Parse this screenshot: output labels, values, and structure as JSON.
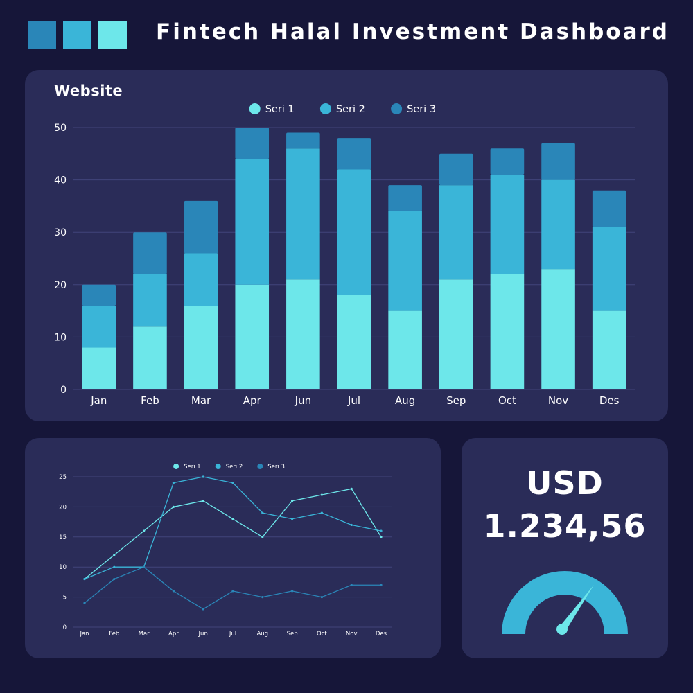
{
  "header": {
    "title": "Fintech Halal Investment Dashboard",
    "swatches": [
      "#2a86b8",
      "#3ab5d8",
      "#6de7ea"
    ]
  },
  "bar_panel": {
    "title": "Website"
  },
  "stat_panel": {
    "currency": "USD",
    "amount": "1.234,56",
    "gauge_color": "#3ab5d8",
    "needle_color": "#6de7ea"
  },
  "chart_data": [
    {
      "type": "bar",
      "stacked": true,
      "title": "Website",
      "categories": [
        "Jan",
        "Feb",
        "Mar",
        "Apr",
        "Jun",
        "Jul",
        "Aug",
        "Sep",
        "Oct",
        "Nov",
        "Des"
      ],
      "series": [
        {
          "name": "Seri 1",
          "color": "#6de7ea",
          "values": [
            8,
            12,
            16,
            20,
            21,
            18,
            15,
            21,
            22,
            23,
            15
          ]
        },
        {
          "name": "Seri 2",
          "color": "#3ab5d8",
          "values": [
            8,
            10,
            10,
            24,
            25,
            24,
            19,
            18,
            19,
            17,
            16
          ]
        },
        {
          "name": "Seri 3",
          "color": "#2a86b8",
          "values": [
            4,
            8,
            10,
            6,
            3,
            6,
            5,
            6,
            5,
            7,
            7
          ]
        }
      ],
      "ylim": [
        0,
        50
      ],
      "yticks": [
        0,
        10,
        20,
        30,
        40,
        50
      ],
      "grid": true,
      "legend": "top-center"
    },
    {
      "type": "line",
      "categories": [
        "Jan",
        "Feb",
        "Mar",
        "Apr",
        "Jun",
        "Jul",
        "Aug",
        "Sep",
        "Oct",
        "Nov",
        "Des"
      ],
      "series": [
        {
          "name": "Seri 1",
          "color": "#6de7ea",
          "values": [
            8,
            12,
            16,
            20,
            21,
            18,
            15,
            21,
            22,
            23,
            15
          ]
        },
        {
          "name": "Seri 2",
          "color": "#3ab5d8",
          "values": [
            8,
            10,
            10,
            24,
            25,
            24,
            19,
            18,
            19,
            17,
            16
          ]
        },
        {
          "name": "Seri 3",
          "color": "#2a86b8",
          "values": [
            4,
            8,
            10,
            6,
            3,
            6,
            5,
            6,
            5,
            7,
            7
          ]
        }
      ],
      "ylim": [
        0,
        25
      ],
      "yticks": [
        0,
        5,
        10,
        15,
        20,
        25
      ],
      "grid": true,
      "legend": "top-center"
    }
  ]
}
